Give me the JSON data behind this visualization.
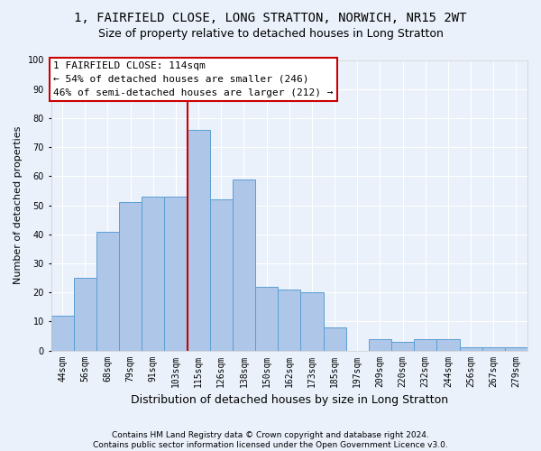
{
  "title1": "1, FAIRFIELD CLOSE, LONG STRATTON, NORWICH, NR15 2WT",
  "title2": "Size of property relative to detached houses in Long Stratton",
  "xlabel": "Distribution of detached houses by size in Long Stratton",
  "ylabel": "Number of detached properties",
  "footnote": "Contains HM Land Registry data © Crown copyright and database right 2024.\nContains public sector information licensed under the Open Government Licence v3.0.",
  "bar_labels": [
    "44sqm",
    "56sqm",
    "68sqm",
    "79sqm",
    "91sqm",
    "103sqm",
    "115sqm",
    "126sqm",
    "138sqm",
    "150sqm",
    "162sqm",
    "173sqm",
    "185sqm",
    "197sqm",
    "209sqm",
    "220sqm",
    "232sqm",
    "244sqm",
    "256sqm",
    "267sqm",
    "279sqm"
  ],
  "bar_values": [
    12,
    25,
    41,
    51,
    53,
    53,
    76,
    52,
    59,
    22,
    21,
    20,
    8,
    0,
    4,
    3,
    4,
    4,
    1,
    1,
    1
  ],
  "bar_color": "#aec6e8",
  "bar_edge_color": "#5a9fd4",
  "vline_x": 5.5,
  "vline_color": "#cc0000",
  "annotation_text": "1 FAIRFIELD CLOSE: 114sqm\n← 54% of detached houses are smaller (246)\n46% of semi-detached houses are larger (212) →",
  "annotation_box_color": "#ffffff",
  "annotation_box_edge": "#cc0000",
  "ylim": [
    0,
    100
  ],
  "yticks": [
    0,
    10,
    20,
    30,
    40,
    50,
    60,
    70,
    80,
    90,
    100
  ],
  "bg_color": "#eaf1fb",
  "plot_bg": "#eaf1fb",
  "grid_color": "#ffffff",
  "title1_fontsize": 10,
  "title2_fontsize": 9,
  "xlabel_fontsize": 9,
  "ylabel_fontsize": 8,
  "tick_fontsize": 7,
  "annot_fontsize": 8,
  "footnote_fontsize": 6.5
}
